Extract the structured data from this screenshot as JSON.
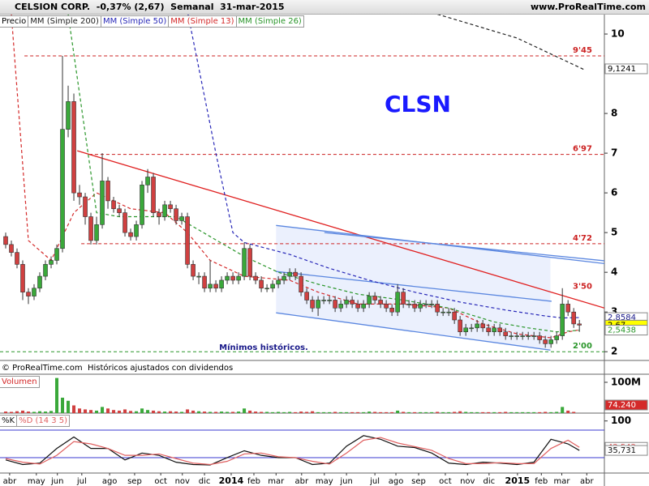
{
  "header": {
    "title": "CELSION CORP.  -0,37% (2,67)  Semanal  31-mar-2015",
    "site": "www.ProRealTime.com"
  },
  "footer": "© ProRealTime.com  Históricos ajustados con dividendos",
  "chart_data": [
    {
      "type": "candlestick",
      "name": "Precio",
      "up_color": "#3aa83a",
      "down_color": "#d04040",
      "annotations": [
        "CLSN",
        "Mínimos históricos."
      ],
      "open": [
        4.9,
        4.7,
        4.5,
        4.2,
        3.5,
        3.4,
        3.6,
        3.9,
        4.2,
        4.3,
        4.6,
        7.6,
        8.3,
        6.0,
        5.9,
        5.4,
        4.8,
        5.2,
        6.3,
        5.8,
        5.6,
        5.5,
        5.0,
        4.9,
        5.2,
        6.2,
        6.4,
        5.5,
        5.4,
        5.7,
        5.6,
        5.3,
        5.4,
        4.2,
        3.9,
        3.9,
        3.6,
        3.7,
        3.6,
        3.8,
        3.9,
        3.8,
        3.9,
        4.6,
        3.9,
        3.8,
        3.6,
        3.6,
        3.7,
        3.8,
        3.9,
        4.0,
        3.9,
        3.5,
        3.3,
        3.1,
        3.3,
        3.3,
        3.3,
        3.1,
        3.2,
        3.3,
        3.2,
        3.1,
        3.2,
        3.4,
        3.3,
        3.2,
        3.1,
        3.0,
        3.5,
        3.2,
        3.2,
        3.1,
        3.2,
        3.2,
        3.2,
        3.0,
        3.0,
        3.0,
        2.8,
        2.5,
        2.6,
        2.6,
        2.7,
        2.6,
        2.5,
        2.6,
        2.5,
        2.4,
        2.4,
        2.4,
        2.4,
        2.4,
        2.4,
        2.3,
        2.2,
        2.3,
        2.4,
        3.2,
        3.0,
        2.7
      ],
      "high": [
        5.0,
        4.8,
        4.6,
        4.3,
        3.6,
        3.7,
        4.0,
        4.3,
        4.4,
        4.7,
        9.45,
        8.7,
        8.5,
        6.2,
        6.0,
        5.5,
        5.4,
        7.0,
        6.4,
        5.9,
        5.7,
        5.6,
        5.1,
        5.3,
        6.3,
        6.6,
        6.5,
        5.6,
        5.8,
        5.8,
        5.7,
        5.5,
        5.5,
        4.3,
        4.0,
        4.0,
        4.3,
        3.8,
        3.9,
        4.0,
        4.0,
        4.0,
        4.75,
        4.7,
        4.0,
        3.9,
        3.7,
        3.8,
        3.9,
        4.0,
        4.1,
        4.1,
        4.0,
        3.6,
        3.4,
        3.4,
        3.4,
        3.4,
        3.4,
        3.3,
        3.4,
        3.4,
        3.3,
        3.3,
        3.5,
        3.5,
        3.4,
        3.3,
        3.2,
        3.7,
        3.6,
        3.3,
        3.3,
        3.3,
        3.3,
        3.3,
        3.3,
        3.1,
        3.1,
        3.1,
        2.9,
        2.7,
        2.7,
        2.8,
        2.8,
        2.7,
        2.7,
        2.7,
        2.6,
        2.5,
        2.5,
        2.5,
        2.5,
        2.5,
        2.5,
        2.4,
        2.4,
        2.5,
        3.6,
        3.3,
        3.1,
        2.8
      ],
      "low": [
        4.6,
        4.4,
        4.1,
        3.3,
        3.2,
        3.3,
        3.5,
        3.8,
        4.1,
        4.2,
        4.5,
        7.4,
        5.8,
        5.7,
        5.2,
        4.7,
        4.7,
        5.1,
        5.6,
        5.5,
        5.4,
        4.9,
        4.8,
        4.8,
        5.1,
        6.0,
        5.4,
        5.2,
        5.3,
        5.5,
        5.2,
        5.2,
        4.1,
        3.8,
        3.7,
        3.5,
        3.5,
        3.5,
        3.5,
        3.7,
        3.7,
        3.7,
        3.8,
        3.8,
        3.7,
        3.5,
        3.5,
        3.5,
        3.6,
        3.7,
        3.8,
        3.8,
        3.4,
        3.2,
        3.0,
        2.9,
        3.2,
        3.2,
        3.0,
        3.0,
        3.1,
        3.1,
        3.0,
        3.0,
        3.1,
        3.2,
        3.1,
        3.0,
        2.9,
        2.9,
        3.1,
        3.1,
        3.0,
        3.0,
        3.1,
        3.1,
        2.9,
        2.9,
        2.9,
        2.7,
        2.4,
        2.4,
        2.5,
        2.5,
        2.5,
        2.4,
        2.4,
        2.4,
        2.3,
        2.3,
        2.3,
        2.3,
        2.3,
        2.3,
        2.2,
        2.1,
        2.1,
        2.2,
        2.3,
        2.9,
        2.6,
        2.5
      ],
      "close": [
        4.7,
        4.5,
        4.2,
        3.5,
        3.4,
        3.6,
        3.9,
        4.2,
        4.3,
        4.6,
        7.6,
        8.3,
        6.0,
        5.9,
        5.4,
        4.8,
        5.2,
        6.3,
        5.8,
        5.6,
        5.5,
        5.0,
        4.9,
        5.2,
        6.2,
        6.4,
        5.5,
        5.4,
        5.7,
        5.6,
        5.3,
        5.4,
        4.2,
        3.9,
        3.9,
        3.6,
        3.7,
        3.6,
        3.8,
        3.9,
        3.8,
        3.9,
        4.6,
        3.9,
        3.8,
        3.6,
        3.6,
        3.7,
        3.8,
        3.9,
        4.0,
        3.9,
        3.5,
        3.3,
        3.1,
        3.3,
        3.3,
        3.3,
        3.1,
        3.2,
        3.3,
        3.2,
        3.1,
        3.2,
        3.4,
        3.3,
        3.2,
        3.1,
        3.0,
        3.5,
        3.2,
        3.2,
        3.1,
        3.2,
        3.2,
        3.2,
        3.0,
        3.0,
        3.0,
        2.8,
        2.5,
        2.6,
        2.6,
        2.7,
        2.6,
        2.5,
        2.6,
        2.5,
        2.4,
        2.4,
        2.4,
        2.4,
        2.4,
        2.4,
        2.3,
        2.2,
        2.3,
        2.4,
        3.2,
        3.0,
        2.7,
        2.67
      ],
      "series": [
        {
          "name": "MM (Simple 200)",
          "color": "#222222",
          "x": [
            76,
            90,
            101.9
          ],
          "values": [
            10.5,
            9.9,
            9.1
          ]
        },
        {
          "name": "MM (Simple 50)",
          "color": "#2828b8",
          "x": [
            32.1,
            37,
            40,
            42,
            50,
            57,
            64,
            72,
            80,
            88,
            95,
            98,
            101
          ],
          "values": [
            10.5,
            7.0,
            5.0,
            4.75,
            4.45,
            4.1,
            3.8,
            3.5,
            3.25,
            3.05,
            2.9,
            2.85,
            2.86
          ]
        },
        {
          "name": "MM (Simple 13)",
          "color": "#d42a2a",
          "x": [
            1,
            4,
            8,
            12,
            16,
            22,
            28,
            32,
            36,
            42,
            50,
            55,
            62,
            70,
            78,
            84,
            90,
            96,
            99,
            101
          ],
          "values": [
            10.5,
            4.8,
            4.3,
            5.5,
            6.0,
            5.6,
            5.5,
            5.0,
            4.3,
            3.9,
            3.8,
            3.5,
            3.2,
            3.2,
            3.1,
            2.7,
            2.45,
            2.35,
            2.5,
            2.55
          ]
        },
        {
          "name": "MM (Simple 26)",
          "color": "#2a962a",
          "x": [
            11,
            16,
            20,
            30,
            36,
            42,
            48,
            55,
            62,
            70,
            78,
            86,
            92,
            97,
            101
          ],
          "values": [
            10.5,
            5.5,
            5.4,
            5.4,
            4.9,
            4.4,
            4.0,
            3.7,
            3.45,
            3.3,
            3.1,
            2.75,
            2.6,
            2.5,
            2.54
          ]
        }
      ],
      "levels": [
        {
          "value": 9.45,
          "label": "9'45",
          "color": "#cc2222",
          "from": 3.3,
          "line": true
        },
        {
          "value": 6.97,
          "label": "6'97",
          "color": "#cc2222",
          "from": 14.7,
          "line": true
        },
        {
          "value": 4.72,
          "label": "4'72",
          "color": "#cc2222",
          "from": 13.3,
          "line": true
        },
        {
          "value": 3.5,
          "label": "3'50",
          "color": "#cc2222",
          "from": 96,
          "line": false
        },
        {
          "value": 2,
          "label": "2'00",
          "color": "#2a962a",
          "from": -1,
          "line": true
        }
      ],
      "trendlines": [
        {
          "color": "#e02020",
          "x": [
            12.6,
            105.4
          ],
          "y": [
            7.06,
            3.1
          ]
        },
        {
          "color": "#5b87e0",
          "x": [
            47.6,
            105.4
          ],
          "y": [
            5.18,
            4.22
          ]
        },
        {
          "color": "#5b87e0",
          "x": [
            56.1,
            105.4
          ],
          "y": [
            5.0,
            4.29
          ]
        },
        {
          "color": "#5b87e0",
          "x": [
            47.6,
            96.1
          ],
          "y": [
            4.02,
            3.27
          ]
        },
        {
          "color": "#5b87e0",
          "x": [
            47.6,
            95.9
          ],
          "y": [
            2.98,
            2.04
          ]
        }
      ],
      "price_tags": [
        {
          "value": 9.1241,
          "label": "9,1241",
          "color": "#000000",
          "bg": "#ffffff"
        },
        {
          "value": 2.8584,
          "label": "2,8584",
          "color": "#1a1a8a",
          "bg": "#ffffff"
        },
        {
          "value": 2.67,
          "label": "2,67",
          "color": "#000000",
          "bg": "#ffff00"
        },
        {
          "value": 2.5438,
          "label": "2,5438",
          "color": "#2a962a",
          "bg": "#ffffff"
        }
      ],
      "xlim": [
        -1,
        105.4
      ],
      "ylim": [
        1.78,
        10.49
      ],
      "yticks": [
        2,
        3,
        4,
        5,
        6,
        7,
        8,
        10
      ]
    },
    {
      "type": "bar",
      "title": "Volumen",
      "values": [
        5000000,
        4000000,
        6000000,
        8000000,
        5000000,
        4000000,
        6000000,
        5000000,
        7000000,
        114000000,
        50000000,
        40000000,
        25000000,
        15000000,
        12000000,
        10000000,
        8000000,
        20000000,
        15000000,
        10000000,
        8000000,
        12000000,
        7000000,
        6000000,
        15000000,
        10000000,
        8000000,
        6000000,
        5000000,
        6000000,
        5000000,
        4000000,
        12000000,
        8000000,
        6000000,
        5000000,
        4000000,
        4000000,
        5000000,
        4000000,
        4000000,
        5000000,
        15000000,
        8000000,
        5000000,
        4000000,
        4000000,
        3000000,
        4000000,
        3000000,
        4000000,
        3000000,
        5000000,
        4000000,
        6000000,
        3000000,
        3000000,
        3000000,
        4000000,
        3000000,
        3000000,
        3000000,
        3000000,
        3000000,
        5000000,
        4000000,
        3000000,
        3000000,
        3000000,
        8000000,
        4000000,
        3000000,
        3000000,
        3000000,
        3000000,
        3000000,
        4000000,
        3000000,
        3000000,
        4000000,
        6000000,
        4000000,
        3000000,
        3000000,
        3000000,
        3000000,
        3000000,
        3000000,
        4000000,
        3000000,
        3000000,
        3000000,
        3000000,
        3000000,
        3000000,
        4000000,
        3000000,
        4000000,
        20000000,
        8000000,
        4000000,
        74240
      ],
      "value_tag": {
        "value": 74240,
        "label": "74.240",
        "color": "#d42a2a"
      },
      "xlim": [
        -1,
        105.4
      ],
      "ylim": [
        0,
        123600000
      ],
      "yticks": [
        {
          "value": 100000000,
          "label": "100M"
        }
      ]
    },
    {
      "type": "line",
      "series": [
        {
          "name": "%K",
          "color": "#111111",
          "x": [
            0,
            3,
            6,
            9,
            12,
            15,
            18,
            21,
            24,
            27,
            30,
            33,
            36,
            39,
            42,
            45,
            48,
            51,
            54,
            57,
            60,
            63,
            66,
            69,
            72,
            75,
            78,
            81,
            84,
            87,
            90,
            93,
            96,
            99,
            101
          ],
          "values": [
            15,
            5,
            8,
            40,
            65,
            40,
            40,
            15,
            30,
            25,
            10,
            5,
            4,
            20,
            35,
            25,
            20,
            20,
            5,
            8,
            45,
            68,
            60,
            45,
            42,
            30,
            8,
            5,
            10,
            8,
            5,
            10,
            60,
            50,
            35.731
          ]
        },
        {
          "name": "%D (14 3 5)",
          "color": "#e06060",
          "x": [
            0,
            3,
            6,
            9,
            12,
            15,
            18,
            21,
            24,
            27,
            30,
            33,
            36,
            39,
            42,
            45,
            48,
            51,
            54,
            57,
            60,
            63,
            66,
            69,
            72,
            75,
            78,
            81,
            84,
            87,
            90,
            93,
            96,
            99,
            101
          ],
          "values": [
            18,
            10,
            6,
            25,
            55,
            50,
            40,
            25,
            25,
            28,
            18,
            8,
            5,
            12,
            28,
            30,
            22,
            20,
            12,
            6,
            30,
            58,
            64,
            52,
            44,
            36,
            18,
            7,
            7,
            9,
            7,
            7,
            40,
            58,
            42.542
          ]
        }
      ],
      "levels": [
        20,
        80
      ],
      "level_color": "#3a3ad0",
      "value_tags": [
        {
          "value": 42.542,
          "label": "42,542",
          "color": "#e06060"
        },
        {
          "value": 35.731,
          "label": "35,731",
          "color": "#111111"
        }
      ],
      "xlim": [
        -1,
        105.4
      ],
      "ylim": [
        -13.6,
        113.6
      ],
      "yticks": [
        100
      ],
      "xticks": [
        {
          "value": 0.7,
          "label": "abr"
        },
        {
          "value": 5.4,
          "label": "may"
        },
        {
          "value": 9.1,
          "label": "jun"
        },
        {
          "value": 13.4,
          "label": "jul"
        },
        {
          "value": 18.3,
          "label": "ago"
        },
        {
          "value": 22.7,
          "label": "sep"
        },
        {
          "value": 27.3,
          "label": "oct"
        },
        {
          "value": 31.1,
          "label": "nov"
        },
        {
          "value": 35,
          "label": "dic"
        },
        {
          "value": 39.7,
          "label": "2014"
        },
        {
          "value": 43.7,
          "label": "feb"
        },
        {
          "value": 47.6,
          "label": "mar"
        },
        {
          "value": 52.1,
          "label": "abr"
        },
        {
          "value": 56.1,
          "label": "may"
        },
        {
          "value": 60,
          "label": "jun"
        },
        {
          "value": 65,
          "label": "jul"
        },
        {
          "value": 68.7,
          "label": "ago"
        },
        {
          "value": 72.7,
          "label": "sep"
        },
        {
          "value": 77.4,
          "label": "oct"
        },
        {
          "value": 81.3,
          "label": "nov"
        },
        {
          "value": 85.1,
          "label": "dic"
        },
        {
          "value": 90.1,
          "label": "2015"
        },
        {
          "value": 94.3,
          "label": "feb"
        },
        {
          "value": 97.9,
          "label": "mar"
        },
        {
          "value": 102.3,
          "label": "abr"
        }
      ]
    }
  ]
}
